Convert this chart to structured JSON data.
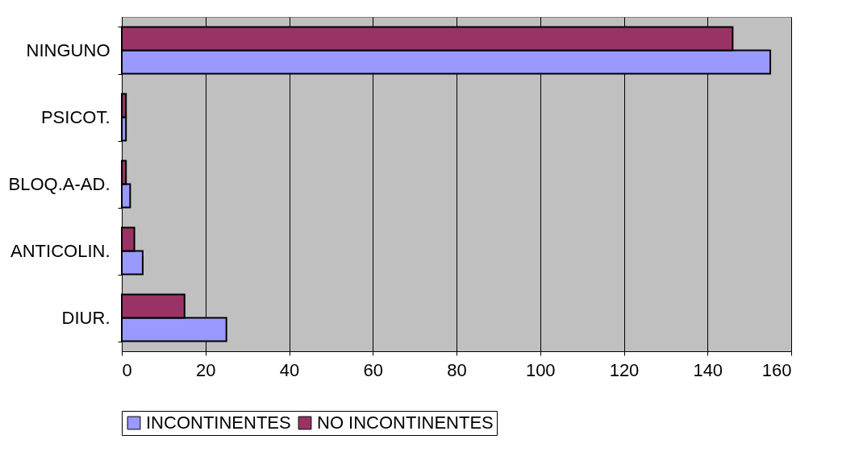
{
  "chart_data": {
    "type": "bar",
    "orientation": "horizontal",
    "categories": [
      "NINGUNO",
      "PSICOT.",
      "BLOQ.A-AD.",
      "ANTICOLIN.",
      "DIUR."
    ],
    "series": [
      {
        "name": "INCONTINENTES",
        "color": "#9999ff",
        "values": [
          155,
          1,
          2,
          5,
          25
        ]
      },
      {
        "name": "NO INCONTINENTES",
        "color": "#993366",
        "values": [
          146,
          1,
          1,
          3,
          15
        ]
      }
    ],
    "xlim": [
      0,
      160
    ],
    "xticks": [
      0,
      20,
      40,
      60,
      80,
      100,
      120,
      140,
      160
    ],
    "grid": "x",
    "legend": "bottom"
  }
}
